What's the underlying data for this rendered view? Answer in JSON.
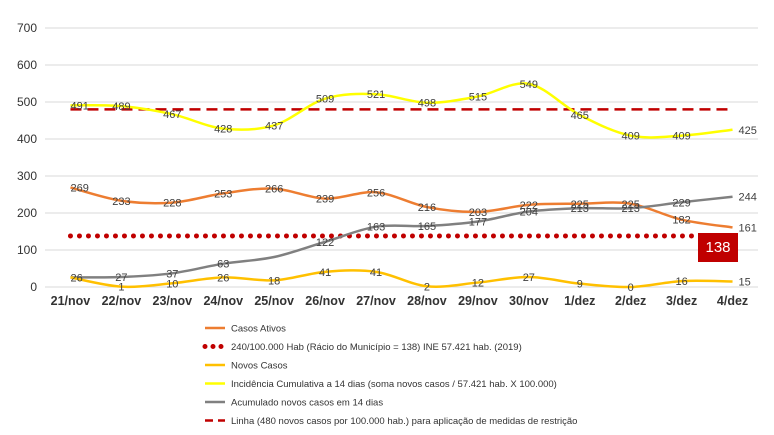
{
  "chart_data": {
    "type": "line",
    "categories": [
      "21/nov",
      "22/nov",
      "23/nov",
      "24/nov",
      "25/nov",
      "26/nov",
      "27/nov",
      "28/nov",
      "29/nov",
      "30/nov",
      "1/dez",
      "2/dez",
      "3/dez",
      "4/dez"
    ],
    "yticks": [
      "0",
      "100",
      "200",
      "300",
      "400",
      "500",
      "600",
      "700"
    ],
    "ylim": [
      0,
      700
    ],
    "grid": true,
    "legend_position": "bottom",
    "series": [
      {
        "name": "Casos Ativos",
        "color": "#ed7d31",
        "style": "solid",
        "values": [
          269,
          233,
          228,
          253,
          266,
          239,
          256,
          216,
          203,
          222,
          225,
          225,
          182,
          161
        ],
        "labels": [
          "269",
          "233",
          "228",
          "253",
          "266",
          "239",
          "256",
          "216",
          "203",
          "222",
          "225",
          "225",
          "182",
          "161"
        ]
      },
      {
        "name": "240/100.000 Hab (Rácio do Município = 138) INE 57.421 hab. (2019)",
        "color": "#c00000",
        "style": "dotted",
        "values": [
          138,
          138,
          138,
          138,
          138,
          138,
          138,
          138,
          138,
          138,
          138,
          138,
          138,
          138
        ],
        "labels": []
      },
      {
        "name": "Novos Casos",
        "color": "#ffc000",
        "style": "solid",
        "values": [
          26,
          1,
          10,
          26,
          18,
          41,
          41,
          2,
          12,
          27,
          9,
          0,
          16,
          15
        ],
        "labels": [
          "26",
          "1",
          "10",
          "26",
          "18",
          "41",
          "41",
          "2",
          "12",
          "27",
          "9",
          "0",
          "16",
          "15"
        ]
      },
      {
        "name": "Incidência Cumulativa a 14 dias (soma novos casos / 57.421 hab. X 100.000)",
        "color": "#ffff00",
        "style": "solid",
        "values": [
          491,
          489,
          467,
          428,
          437,
          509,
          521,
          498,
          515,
          549,
          465,
          409,
          409,
          425
        ],
        "labels": [
          "491",
          "489",
          "467",
          "428",
          "437",
          "509",
          "521",
          "498",
          "515",
          "549",
          "465",
          "409",
          "409",
          "425"
        ]
      },
      {
        "name": "Acumulado novos casos em 14 dias",
        "color": "#808080",
        "style": "solid",
        "values": [
          26,
          27,
          37,
          63,
          81,
          122,
          163,
          165,
          177,
          204,
          213,
          213,
          229,
          244
        ],
        "labels": [
          "",
          "27",
          "37",
          "63",
          "",
          "122",
          "163",
          "165",
          "177",
          "204",
          "213",
          "213",
          "229",
          "244"
        ]
      },
      {
        "name": "Linha (480 novos casos por 100.000 hab.) para aplicação de medidas de restrição",
        "color": "#c00000",
        "style": "dashed",
        "values": [
          480,
          480,
          480,
          480,
          480,
          480,
          480,
          480,
          480,
          480,
          480,
          480,
          480,
          480
        ],
        "labels": []
      }
    ],
    "badge": {
      "text": "138",
      "color": "#c00000"
    }
  }
}
